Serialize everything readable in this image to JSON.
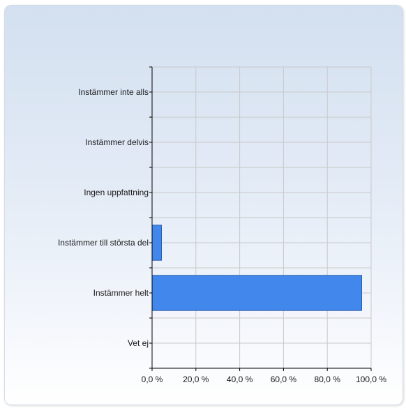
{
  "chart_data": {
    "type": "bar",
    "orientation": "horizontal",
    "categories": [
      "Instämmer inte alls",
      "Instämmer delvis",
      "Ingen uppfattning",
      "Instämmer till största del",
      "Instämmer helt",
      "Vet ej"
    ],
    "values": [
      0,
      0,
      0,
      4.3,
      95.7,
      0
    ],
    "xlim": [
      0,
      100
    ],
    "x_ticks": [
      "0,0 %",
      "20,0 %",
      "40,0 %",
      "60,0 %",
      "80,0 %",
      "100,0 %"
    ],
    "x_tick_values": [
      0,
      20,
      40,
      60,
      80,
      100
    ],
    "grid": true,
    "bar_color": "#4287ec",
    "bar_border_color": "#2a5fb0",
    "title": "",
    "xlabel": "",
    "ylabel": ""
  }
}
